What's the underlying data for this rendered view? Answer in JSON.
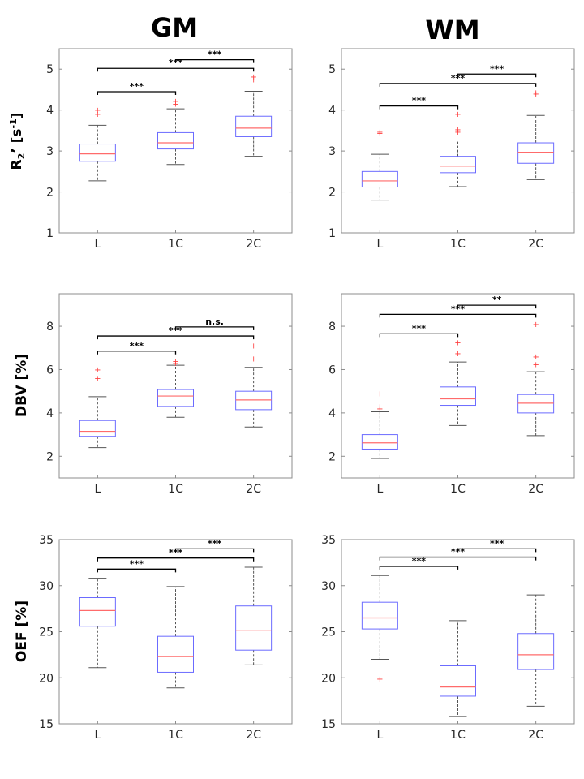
{
  "columns": [
    "GM",
    "WM"
  ],
  "ylabels": {
    "r2prime": {
      "main": "R",
      "sub": "2",
      "rest": "’ [s",
      "sup": "-1",
      "end": "]"
    },
    "dbv": "DBV [%]",
    "oef": "OEF [%]"
  },
  "chart_data": [
    {
      "type": "box",
      "name": "gm-r2prime",
      "ylim": [
        1,
        5.5
      ],
      "yticks": [
        1,
        2,
        3,
        4,
        5
      ],
      "categories": [
        "L",
        "1C",
        "2C"
      ],
      "boxes": [
        {
          "min": 2.27,
          "q1": 2.75,
          "median": 2.93,
          "q3": 3.17,
          "max": 3.63,
          "outliers": [
            3.9,
            4.0
          ]
        },
        {
          "min": 2.67,
          "q1": 3.05,
          "median": 3.2,
          "q3": 3.45,
          "max": 4.03,
          "outliers": [
            4.15,
            4.22
          ]
        },
        {
          "min": 2.87,
          "q1": 3.35,
          "median": 3.56,
          "q3": 3.85,
          "max": 4.46,
          "outliers": [
            4.75,
            4.82
          ]
        }
      ],
      "significance": [
        {
          "from": 0,
          "to": 1,
          "y": 4.45,
          "label": "***"
        },
        {
          "from": 0,
          "to": 2,
          "y": 5.02,
          "label": "***"
        },
        {
          "from": 1,
          "to": 2,
          "y": 5.23,
          "label": "***"
        }
      ]
    },
    {
      "type": "box",
      "name": "wm-r2prime",
      "ylim": [
        1,
        5.5
      ],
      "yticks": [
        1,
        2,
        3,
        4,
        5
      ],
      "categories": [
        "L",
        "1C",
        "2C"
      ],
      "boxes": [
        {
          "min": 1.8,
          "q1": 2.12,
          "median": 2.27,
          "q3": 2.5,
          "max": 2.92,
          "outliers": [
            3.44,
            3.47
          ]
        },
        {
          "min": 2.13,
          "q1": 2.47,
          "median": 2.63,
          "q3": 2.87,
          "max": 3.27,
          "outliers": [
            3.47,
            3.53,
            3.9
          ]
        },
        {
          "min": 2.3,
          "q1": 2.7,
          "median": 2.97,
          "q3": 3.2,
          "max": 3.87,
          "outliers": [
            4.4,
            4.43
          ]
        }
      ],
      "significance": [
        {
          "from": 0,
          "to": 1,
          "y": 4.1,
          "label": "***"
        },
        {
          "from": 0,
          "to": 2,
          "y": 4.65,
          "label": "***"
        },
        {
          "from": 1,
          "to": 2,
          "y": 4.88,
          "label": "***"
        }
      ]
    },
    {
      "type": "box",
      "name": "gm-dbv",
      "ylim": [
        1,
        9.5
      ],
      "yticks": [
        2,
        4,
        6,
        8
      ],
      "categories": [
        "L",
        "1C",
        "2C"
      ],
      "boxes": [
        {
          "min": 2.4,
          "q1": 2.92,
          "median": 3.15,
          "q3": 3.65,
          "max": 4.75,
          "outliers": [
            5.6,
            6.0
          ]
        },
        {
          "min": 3.8,
          "q1": 4.3,
          "median": 4.78,
          "q3": 5.08,
          "max": 6.2,
          "outliers": [
            6.4,
            6.3
          ]
        },
        {
          "min": 3.35,
          "q1": 4.15,
          "median": 4.6,
          "q3": 5.0,
          "max": 6.1,
          "outliers": [
            6.5,
            7.1
          ]
        }
      ],
      "significance": [
        {
          "from": 0,
          "to": 1,
          "y": 6.85,
          "label": "***"
        },
        {
          "from": 0,
          "to": 2,
          "y": 7.55,
          "label": "***"
        },
        {
          "from": 1,
          "to": 2,
          "y": 7.97,
          "label": "n.s."
        }
      ]
    },
    {
      "type": "box",
      "name": "wm-dbv",
      "ylim": [
        1,
        9.5
      ],
      "yticks": [
        2,
        4,
        6,
        8
      ],
      "categories": [
        "L",
        "1C",
        "2C"
      ],
      "boxes": [
        {
          "min": 1.9,
          "q1": 2.33,
          "median": 2.62,
          "q3": 3.0,
          "max": 4.05,
          "outliers": [
            4.2,
            4.3,
            4.9
          ]
        },
        {
          "min": 3.42,
          "q1": 4.35,
          "median": 4.65,
          "q3": 5.2,
          "max": 6.35,
          "outliers": [
            6.75,
            7.25
          ]
        },
        {
          "min": 2.95,
          "q1": 4.0,
          "median": 4.45,
          "q3": 4.85,
          "max": 5.9,
          "outliers": [
            6.25,
            6.6,
            8.1
          ]
        }
      ],
      "significance": [
        {
          "from": 0,
          "to": 1,
          "y": 7.65,
          "label": "***"
        },
        {
          "from": 0,
          "to": 2,
          "y": 8.55,
          "label": "***"
        },
        {
          "from": 1,
          "to": 2,
          "y": 8.97,
          "label": "**"
        }
      ]
    },
    {
      "type": "box",
      "name": "gm-oef",
      "ylim": [
        15,
        35
      ],
      "yticks": [
        15,
        20,
        25,
        30,
        35
      ],
      "categories": [
        "L",
        "1C",
        "2C"
      ],
      "boxes": [
        {
          "min": 21.1,
          "q1": 25.6,
          "median": 27.3,
          "q3": 28.7,
          "max": 30.8,
          "outliers": []
        },
        {
          "min": 18.9,
          "q1": 20.6,
          "median": 22.3,
          "q3": 24.5,
          "max": 29.9,
          "outliers": []
        },
        {
          "min": 21.4,
          "q1": 23.0,
          "median": 25.1,
          "q3": 27.8,
          "max": 32.0,
          "outliers": []
        }
      ],
      "significance": [
        {
          "from": 0,
          "to": 1,
          "y": 31.8,
          "label": "***"
        },
        {
          "from": 0,
          "to": 2,
          "y": 33.0,
          "label": "***"
        },
        {
          "from": 1,
          "to": 2,
          "y": 34.0,
          "label": "***"
        }
      ]
    },
    {
      "type": "box",
      "name": "wm-oef",
      "ylim": [
        15,
        35
      ],
      "yticks": [
        15,
        20,
        25,
        30,
        35
      ],
      "categories": [
        "L",
        "1C",
        "2C"
      ],
      "boxes": [
        {
          "min": 22.0,
          "q1": 25.3,
          "median": 26.5,
          "q3": 28.2,
          "max": 31.1,
          "outliers": [
            19.9
          ]
        },
        {
          "min": 15.8,
          "q1": 18.0,
          "median": 19.0,
          "q3": 21.3,
          "max": 26.2,
          "outliers": []
        },
        {
          "min": 16.9,
          "q1": 20.9,
          "median": 22.5,
          "q3": 24.8,
          "max": 29.0,
          "outliers": []
        }
      ],
      "significance": [
        {
          "from": 0,
          "to": 1,
          "y": 32.1,
          "label": "***"
        },
        {
          "from": 0,
          "to": 2,
          "y": 33.1,
          "label": "***"
        },
        {
          "from": 1,
          "to": 2,
          "y": 34.0,
          "label": "***"
        }
      ]
    }
  ]
}
